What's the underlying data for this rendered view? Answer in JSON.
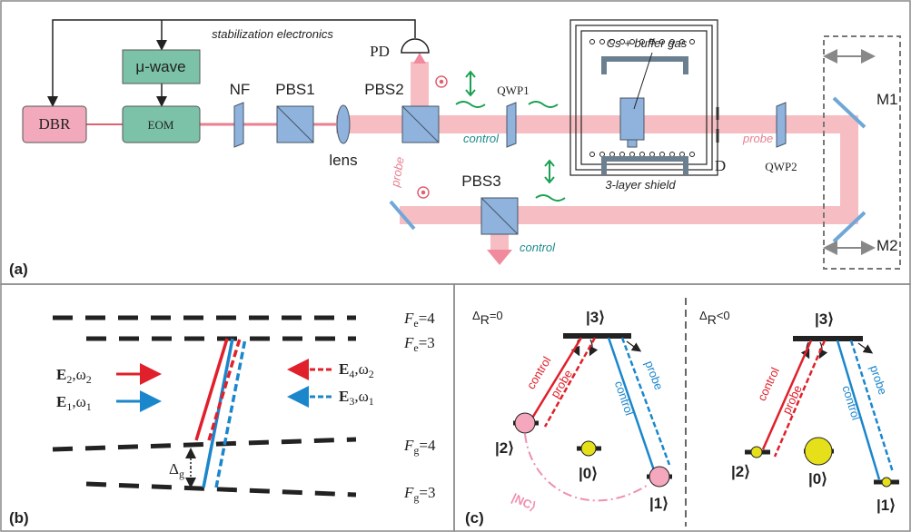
{
  "panel_a": {
    "label": "(a)",
    "stabilization": "stabilization electronics",
    "microwave": "μ-wave",
    "dbr": "DBR",
    "eom": "EOM",
    "nf": "NF",
    "pbs1": "PBS1",
    "pbs2": "PBS2",
    "pbs3": "PBS3",
    "pd": "PD",
    "lens": "lens",
    "qwp1": "QWP1",
    "qwp2": "QWP2",
    "cell": "Cs + buffer gas",
    "shield": "3-layer shield",
    "control_labels": [
      "control",
      "control"
    ],
    "probe_labels": [
      "probe",
      "probe"
    ],
    "iris": "D",
    "mirrors": [
      "M1",
      "M2"
    ]
  },
  "panel_b": {
    "label": "(b)",
    "levels": [
      {
        "symbol": "F",
        "sub": "e",
        "value": "=4"
      },
      {
        "symbol": "F",
        "sub": "e",
        "value": "=3"
      },
      {
        "symbol": "F",
        "sub": "g",
        "value": "=4"
      },
      {
        "symbol": "F",
        "sub": "g",
        "value": "=3"
      }
    ],
    "fields": [
      {
        "symbol": "E",
        "index": "2",
        "freq": ",ω",
        "freq_index": "2"
      },
      {
        "symbol": "E",
        "index": "1",
        "freq": ",ω",
        "freq_index": "1"
      },
      {
        "symbol": "E",
        "index": "4",
        "freq": ",ω",
        "freq_index": "2"
      },
      {
        "symbol": "E",
        "index": "3",
        "freq": ",ω",
        "freq_index": "1"
      }
    ],
    "splitting": {
      "symbol": "Δ",
      "sub": "g"
    }
  },
  "panel_c": {
    "label": "(c)",
    "left": {
      "detuning": {
        "symbol": "Δ",
        "sub": "R",
        "value": "=0"
      },
      "states": [
        "|3⟩",
        "|2⟩",
        "|0⟩",
        "|1⟩"
      ],
      "transitions": [
        "control",
        "probe",
        "control",
        "probe"
      ],
      "dark_state": "|NC⟩"
    },
    "right": {
      "detuning": {
        "symbol": "Δ",
        "sub": "R",
        "value": "<0"
      },
      "states": [
        "|3⟩",
        "|2⟩",
        "|0⟩",
        "|1⟩"
      ],
      "transitions": [
        "control",
        "probe",
        "control",
        "probe"
      ]
    }
  }
}
